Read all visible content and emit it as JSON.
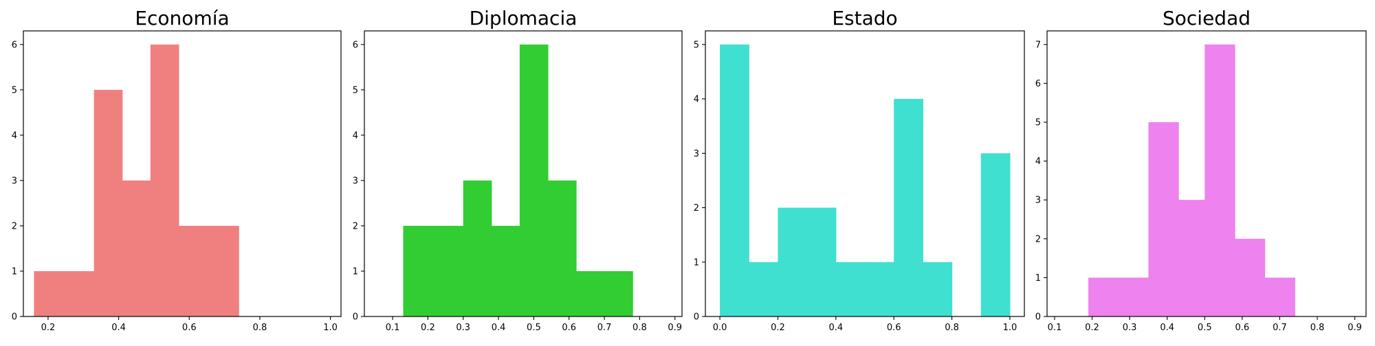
{
  "chart_data": [
    {
      "type": "histogram",
      "title": "Economía",
      "color": "#f08080",
      "xlim": [
        0.13,
        1.03
      ],
      "ylim": [
        0,
        6.3
      ],
      "xticks": [
        "0.2",
        "0.4",
        "0.6",
        "0.8",
        "1.0"
      ],
      "yticks": [
        "0",
        "1",
        "2",
        "3",
        "4",
        "5",
        "6"
      ],
      "bins": [
        {
          "x0": 0.16,
          "x1": 0.24,
          "count": 1
        },
        {
          "x0": 0.24,
          "x1": 0.33,
          "count": 1
        },
        {
          "x0": 0.33,
          "x1": 0.41,
          "count": 5
        },
        {
          "x0": 0.41,
          "x1": 0.49,
          "count": 3
        },
        {
          "x0": 0.49,
          "x1": 0.57,
          "count": 6
        },
        {
          "x0": 0.57,
          "x1": 0.66,
          "count": 2
        },
        {
          "x0": 0.66,
          "x1": 0.74,
          "count": 2
        },
        {
          "x0": 0.74,
          "x1": 0.82,
          "count": 0
        },
        {
          "x0": 0.82,
          "x1": 0.91,
          "count": 0
        },
        {
          "x0": 0.91,
          "x1": 0.99,
          "count": 0
        }
      ]
    },
    {
      "type": "histogram",
      "title": "Diplomacia",
      "color": "#32cd32",
      "xlim": [
        0.02,
        0.92
      ],
      "ylim": [
        0,
        6.3
      ],
      "xticks": [
        "0.1",
        "0.2",
        "0.3",
        "0.4",
        "0.5",
        "0.6",
        "0.7",
        "0.8",
        "0.9"
      ],
      "yticks": [
        "0",
        "1",
        "2",
        "3",
        "4",
        "5",
        "6"
      ],
      "bins": [
        {
          "x0": 0.05,
          "x1": 0.13,
          "count": 0
        },
        {
          "x0": 0.13,
          "x1": 0.21,
          "count": 2
        },
        {
          "x0": 0.21,
          "x1": 0.3,
          "count": 2
        },
        {
          "x0": 0.3,
          "x1": 0.38,
          "count": 3
        },
        {
          "x0": 0.38,
          "x1": 0.46,
          "count": 2
        },
        {
          "x0": 0.46,
          "x1": 0.54,
          "count": 6
        },
        {
          "x0": 0.54,
          "x1": 0.62,
          "count": 3
        },
        {
          "x0": 0.62,
          "x1": 0.7,
          "count": 1
        },
        {
          "x0": 0.7,
          "x1": 0.78,
          "count": 1
        },
        {
          "x0": 0.78,
          "x1": 0.86,
          "count": 0
        }
      ]
    },
    {
      "type": "histogram",
      "title": "Estado",
      "color": "#40e0d0",
      "xlim": [
        -0.05,
        1.05
      ],
      "ylim": [
        0,
        5.25
      ],
      "xticks": [
        "0.0",
        "0.2",
        "0.4",
        "0.6",
        "0.8",
        "1.0"
      ],
      "yticks": [
        "0",
        "1",
        "2",
        "3",
        "4",
        "5"
      ],
      "bins": [
        {
          "x0": 0.0,
          "x1": 0.1,
          "count": 5
        },
        {
          "x0": 0.1,
          "x1": 0.2,
          "count": 1
        },
        {
          "x0": 0.2,
          "x1": 0.3,
          "count": 2
        },
        {
          "x0": 0.3,
          "x1": 0.4,
          "count": 2
        },
        {
          "x0": 0.4,
          "x1": 0.5,
          "count": 1
        },
        {
          "x0": 0.5,
          "x1": 0.6,
          "count": 1
        },
        {
          "x0": 0.6,
          "x1": 0.7,
          "count": 4
        },
        {
          "x0": 0.7,
          "x1": 0.8,
          "count": 1
        },
        {
          "x0": 0.8,
          "x1": 0.9,
          "count": 0
        },
        {
          "x0": 0.9,
          "x1": 1.0,
          "count": 3
        }
      ]
    },
    {
      "type": "histogram",
      "title": "Sociedad",
      "color": "#ee82ee",
      "xlim": [
        0.08,
        0.93
      ],
      "ylim": [
        0,
        7.35
      ],
      "xticks": [
        "0.1",
        "0.2",
        "0.3",
        "0.4",
        "0.5",
        "0.6",
        "0.7",
        "0.8",
        "0.9"
      ],
      "yticks": [
        "0",
        "1",
        "2",
        "3",
        "4",
        "5",
        "6",
        "7"
      ],
      "bins": [
        {
          "x0": 0.11,
          "x1": 0.19,
          "count": 0
        },
        {
          "x0": 0.19,
          "x1": 0.27,
          "count": 1
        },
        {
          "x0": 0.27,
          "x1": 0.35,
          "count": 1
        },
        {
          "x0": 0.35,
          "x1": 0.43,
          "count": 5
        },
        {
          "x0": 0.43,
          "x1": 0.5,
          "count": 3
        },
        {
          "x0": 0.5,
          "x1": 0.58,
          "count": 7
        },
        {
          "x0": 0.58,
          "x1": 0.66,
          "count": 2
        },
        {
          "x0": 0.66,
          "x1": 0.74,
          "count": 1
        },
        {
          "x0": 0.74,
          "x1": 0.82,
          "count": 0
        },
        {
          "x0": 0.82,
          "x1": 0.9,
          "count": 0
        }
      ]
    }
  ]
}
